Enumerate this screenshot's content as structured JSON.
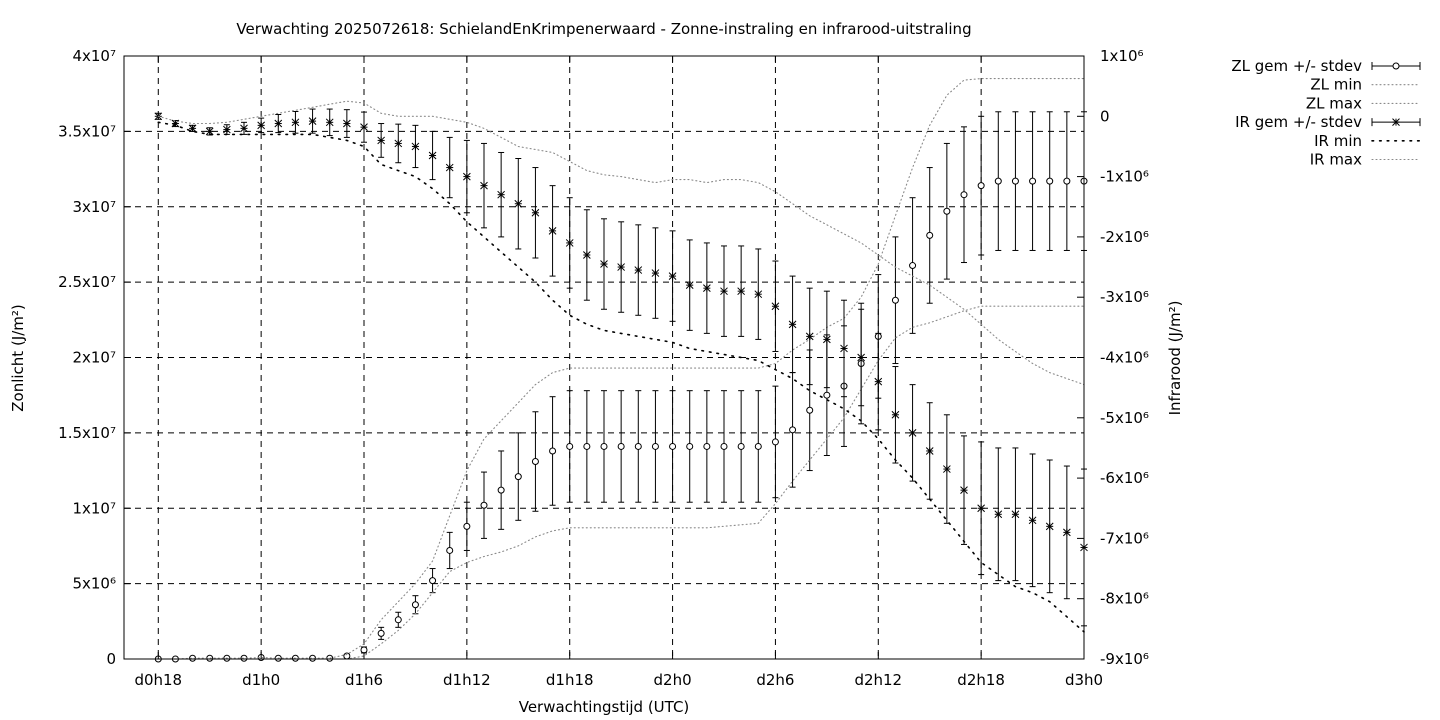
{
  "chart_data": {
    "type": "line",
    "title": "Verwachting 2025072618: SchielandEnKrimpenerwaard - Zonne-instraling en infrarood-uitstraling",
    "xlabel": "Verwachtingstijd (UTC)",
    "ylabel_left": "Zonlicht (J/m²)",
    "ylabel_right": "Infrarood (J/m²)",
    "x_ticks": [
      "d0h18",
      "d1h0",
      "d1h6",
      "d1h12",
      "d1h18",
      "d2h0",
      "d2h6",
      "d2h12",
      "d2h18",
      "d3h0"
    ],
    "y_left_ticks": [
      "0",
      "5x10⁶",
      "1x10⁷",
      "1.5x10⁷",
      "2x10⁷",
      "2.5x10⁷",
      "3x10⁷",
      "3.5x10⁷",
      "4x10⁷"
    ],
    "y_right_ticks": [
      "-9x10⁶",
      "-8x10⁶",
      "-7x10⁶",
      "-6x10⁶",
      "-5x10⁶",
      "-4x10⁶",
      "-3x10⁶",
      "-2x10⁶",
      "-1x10⁶",
      "0",
      "1x10⁶"
    ],
    "ylim_left": [
      0,
      40000000
    ],
    "ylim_right": [
      -9000000,
      1000000
    ],
    "x_hours": [
      18,
      19,
      20,
      21,
      22,
      23,
      24,
      25,
      26,
      27,
      28,
      29,
      30,
      31,
      32,
      33,
      34,
      35,
      36,
      37,
      38,
      39,
      40,
      41,
      42,
      43,
      44,
      45,
      46,
      47,
      48,
      49,
      50,
      51,
      52,
      53,
      54,
      55,
      56,
      57,
      58,
      59,
      60,
      61,
      62,
      63,
      64,
      65,
      66,
      67,
      68,
      69,
      70,
      71,
      72
    ],
    "xlim": [
      16,
      72
    ],
    "grid": true,
    "legend_position": "outside-top-right",
    "series": [
      {
        "name": "ZL gem +/- stdev",
        "axis": "left",
        "style": "errorbar-circle",
        "values": [
          0,
          0,
          0.05,
          0.05,
          0.05,
          0.05,
          0.1,
          0.05,
          0.05,
          0.05,
          0.05,
          0.2,
          0.6,
          1.7,
          2.6,
          3.6,
          5.2,
          7.2,
          8.8,
          10.2,
          11.2,
          12.1,
          13.1,
          13.8,
          14.1,
          14.1,
          14.1,
          14.1,
          14.1,
          14.1,
          14.1,
          14.1,
          14.1,
          14.1,
          14.1,
          14.1,
          14.4,
          15.2,
          16.5,
          17.5,
          18.1,
          19.6,
          21.4,
          23.8,
          26.1,
          28.1,
          29.7,
          30.8,
          31.4,
          31.7,
          31.7,
          31.7,
          31.7,
          31.7,
          31.7
        ],
        "stdev": [
          0,
          0,
          0,
          0,
          0,
          0,
          0,
          0,
          0,
          0,
          0,
          0.1,
          0.2,
          0.4,
          0.5,
          0.6,
          0.8,
          1.2,
          1.6,
          2.2,
          2.6,
          2.9,
          3.3,
          3.6,
          3.7,
          3.7,
          3.7,
          3.7,
          3.7,
          3.7,
          3.7,
          3.7,
          3.7,
          3.7,
          3.7,
          3.7,
          3.7,
          3.8,
          4.0,
          4.0,
          4.0,
          4.0,
          4.1,
          4.2,
          4.5,
          4.5,
          4.5,
          4.5,
          4.6,
          4.6,
          4.6,
          4.6,
          4.6,
          4.6,
          4.6
        ]
      },
      {
        "name": "ZL min",
        "axis": "left",
        "style": "dotted-light",
        "values": [
          0,
          0,
          0,
          0,
          0,
          0,
          0,
          0,
          0,
          0,
          0,
          0,
          0.2,
          1.0,
          1.9,
          3.0,
          4.4,
          5.8,
          6.4,
          6.8,
          7.1,
          7.5,
          8.1,
          8.5,
          8.7,
          8.7,
          8.7,
          8.7,
          8.7,
          8.7,
          8.7,
          8.7,
          8.7,
          8.8,
          8.9,
          9.0,
          10.3,
          11.8,
          13.2,
          14.6,
          16.0,
          17.9,
          19.8,
          21.3,
          22.0,
          22.3,
          22.7,
          23.1,
          23.4,
          23.4,
          23.4,
          23.4,
          23.4,
          23.4,
          23.4
        ]
      },
      {
        "name": "ZL max",
        "axis": "left",
        "style": "dotted-light",
        "values": [
          0,
          0,
          0.05,
          0.05,
          0.05,
          0.05,
          0.1,
          0.05,
          0.05,
          0.05,
          0.05,
          0.3,
          1.0,
          2.6,
          3.8,
          5.0,
          6.5,
          9.5,
          12.5,
          14.6,
          15.8,
          17.0,
          18.2,
          19.0,
          19.3,
          19.3,
          19.3,
          19.3,
          19.3,
          19.3,
          19.3,
          19.3,
          19.3,
          19.3,
          19.3,
          19.3,
          19.6,
          20.5,
          21.2,
          22.0,
          22.6,
          24.0,
          26.2,
          29.4,
          32.6,
          35.4,
          37.4,
          38.4,
          38.5,
          38.5,
          38.5,
          38.5,
          38.5,
          38.5,
          38.5
        ]
      },
      {
        "name": "IR gem +/- stdev",
        "axis": "right",
        "style": "errorbar-star",
        "values": [
          0.0,
          -0.12,
          -0.2,
          -0.25,
          -0.22,
          -0.2,
          -0.15,
          -0.12,
          -0.1,
          -0.08,
          -0.1,
          -0.12,
          -0.18,
          -0.4,
          -0.45,
          -0.5,
          -0.65,
          -0.85,
          -1.0,
          -1.15,
          -1.3,
          -1.45,
          -1.6,
          -1.9,
          -2.1,
          -2.3,
          -2.45,
          -2.5,
          -2.55,
          -2.6,
          -2.65,
          -2.8,
          -2.85,
          -2.9,
          -2.9,
          -2.95,
          -3.15,
          -3.45,
          -3.65,
          -3.7,
          -3.85,
          -4.0,
          -4.4,
          -4.95,
          -5.25,
          -5.55,
          -5.85,
          -6.2,
          -6.5,
          -6.6,
          -6.6,
          -6.7,
          -6.8,
          -6.9,
          -7.15
        ],
        "stdev": [
          0.05,
          0.05,
          0.05,
          0.06,
          0.08,
          0.1,
          0.12,
          0.15,
          0.18,
          0.2,
          0.22,
          0.23,
          0.25,
          0.28,
          0.32,
          0.35,
          0.4,
          0.5,
          0.6,
          0.7,
          0.7,
          0.75,
          0.75,
          0.75,
          0.75,
          0.75,
          0.75,
          0.75,
          0.75,
          0.75,
          0.75,
          0.75,
          0.75,
          0.75,
          0.75,
          0.75,
          0.75,
          0.8,
          0.8,
          0.8,
          0.8,
          0.8,
          0.8,
          0.8,
          0.8,
          0.8,
          0.9,
          0.9,
          1.1,
          1.1,
          1.1,
          1.1,
          1.1,
          1.1,
          1.3
        ]
      },
      {
        "name": "IR min",
        "axis": "right",
        "style": "dotted-dark",
        "values": [
          -0.1,
          -0.15,
          -0.25,
          -0.3,
          -0.3,
          -0.3,
          -0.3,
          -0.3,
          -0.3,
          -0.3,
          -0.35,
          -0.4,
          -0.5,
          -0.8,
          -0.9,
          -1.0,
          -1.2,
          -1.45,
          -1.75,
          -2.0,
          -2.25,
          -2.5,
          -2.75,
          -3.05,
          -3.3,
          -3.45,
          -3.55,
          -3.6,
          -3.65,
          -3.7,
          -3.75,
          -3.85,
          -3.9,
          -3.95,
          -4.0,
          -4.05,
          -4.2,
          -4.35,
          -4.55,
          -4.7,
          -4.85,
          -5.05,
          -5.35,
          -5.7,
          -6.0,
          -6.35,
          -6.7,
          -7.05,
          -7.4,
          -7.6,
          -7.8,
          -7.9,
          -8.05,
          -8.3,
          -8.55
        ]
      },
      {
        "name": "IR max",
        "axis": "right",
        "style": "dotted-light",
        "values": [
          0.0,
          -0.08,
          -0.12,
          -0.12,
          -0.1,
          -0.05,
          0.0,
          0.05,
          0.1,
          0.15,
          0.2,
          0.25,
          0.22,
          0.05,
          0.0,
          0.0,
          0.0,
          -0.05,
          -0.1,
          -0.2,
          -0.35,
          -0.5,
          -0.55,
          -0.6,
          -0.75,
          -0.9,
          -0.97,
          -1.0,
          -1.05,
          -1.1,
          -1.05,
          -1.05,
          -1.1,
          -1.05,
          -1.05,
          -1.1,
          -1.25,
          -1.45,
          -1.65,
          -1.8,
          -1.95,
          -2.1,
          -2.3,
          -2.5,
          -2.65,
          -2.8,
          -3.0,
          -3.2,
          -3.45,
          -3.7,
          -3.9,
          -4.1,
          -4.25,
          -4.35,
          -4.45
        ]
      }
    ]
  }
}
